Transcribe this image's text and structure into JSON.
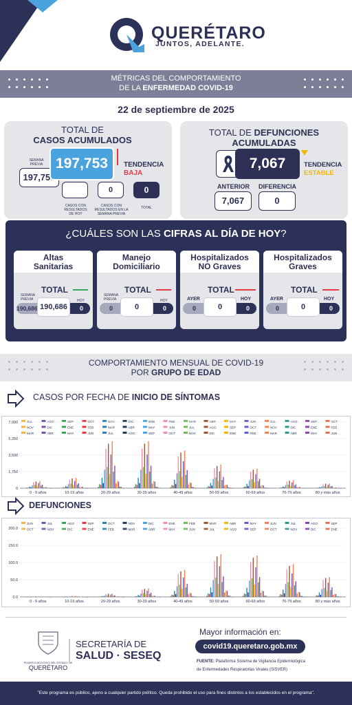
{
  "header": {
    "brand": "QUERÉTARO",
    "slogan": "JUNTOS, ADELANTE."
  },
  "banner": {
    "line1": "MÉTRICAS DEL COMPORTAMIENTO",
    "line2_prefix": "DE LA",
    "line2_bold": "ENFERMEDAD COVID-19"
  },
  "date": "22 de septiembre de 2025",
  "cases": {
    "title1": "TOTAL DE",
    "title2": "CASOS ACUMULADOS",
    "prev_week_label": "SEMANA PREVIA",
    "prev_week": "197,753",
    "current": "197,753",
    "trend_label": "TENDENCIA",
    "trend": "BAJA",
    "by_date_value": "",
    "prev_week_results": "0",
    "total": "0",
    "lbl_results_today": "CASOS CON RESULTADOS DE HOY",
    "lbl_results_prev": "CASOS CON RESULTADOS EN LA SEMANA PREVIA",
    "lbl_total": "TOTAL"
  },
  "deaths": {
    "title1": "TOTAL DE",
    "title1b": "DEFUNCIONES",
    "title2": "ACUMULADAS",
    "current": "7,067",
    "trend_label": "TENDENCIA",
    "trend": "ESTABLE",
    "prev_label": "ANTERIOR",
    "prev": "7,067",
    "diff_label": "DIFERENCIA",
    "diff": "0"
  },
  "today": {
    "heading_prefix": "¿CUÁLES SON LAS",
    "heading_bold": "CIFRAS AL DÍA DE HOY",
    "heading_suffix": "?",
    "total_label": "TOTAL",
    "cards": [
      {
        "line1": "Altas",
        "line2": "Sanitarias",
        "left_label": "SEMANA PREVIA",
        "left": "190,686",
        "mid": "190,686",
        "right_label": "HOY",
        "right": "0"
      },
      {
        "line1": "Manejo",
        "line2": "Domiciliario",
        "left_label": "SEMANA PREVIA",
        "left": "0",
        "mid": "0",
        "right_label": "HOY",
        "right": "0"
      },
      {
        "line1": "Hospitalizados",
        "line2": "NO Graves",
        "left_label": "AYER",
        "left": "0",
        "mid": "0",
        "right_label": "HOY",
        "right": "0"
      },
      {
        "line1": "Hospitalizados",
        "line2": "Graves",
        "left_label": "AYER",
        "left": "0",
        "mid": "0",
        "right_label": "HOY",
        "right": "0"
      }
    ]
  },
  "monthly": {
    "line1": "COMPORTAMIENTO MENSUAL DE COVID-19",
    "line2_prefix": "POR",
    "line2_bold": "GRUPO DE EDAD",
    "cases_title_prefix": "CASOS POR FECHA DE",
    "cases_title_bold": "INICIO DE SÍNTOMAS",
    "deaths_title": "DEFUNCIONES"
  },
  "chart_data": [
    {
      "type": "bar",
      "title": "CASOS POR FECHA DE INICIO DE SÍNTOMAS",
      "categories": [
        "0 - 9 años",
        "10-19 años",
        "20-29 años",
        "30-39 años",
        "40-49 años",
        "50-59 años",
        "60-69 años",
        "70-79 años",
        "80 y más años"
      ],
      "yticks": [
        "0",
        "1,750",
        "3,500",
        "5,250",
        "7,000"
      ],
      "ylim": [
        0,
        7000
      ],
      "legend_months": [
        "JUL",
        "AGO",
        "SEP",
        "OCT",
        "NOV",
        "DIC",
        "ENE",
        "FEB",
        "MAR",
        "ABR",
        "MAY",
        "JUN",
        "JUL",
        "AGO",
        "SEP",
        "OCT",
        "NOV",
        "DIC",
        "ENE",
        "FEB",
        "MAR",
        "ABR",
        "MAY",
        "JUN",
        "JUL",
        "AGO",
        "SEP",
        "OCT",
        "NOV",
        "DIC",
        "ENE",
        "FEB",
        "MAR",
        "ABR",
        "MAY",
        "JUN",
        "JUL",
        "AGO",
        "SEP",
        "OCT",
        "NOV",
        "DIC",
        "ENE",
        "FEB",
        "MAR",
        "ABR",
        "MAY",
        "JUN"
      ],
      "peak_values": [
        900,
        1300,
        6000,
        6000,
        4800,
        3000,
        2500,
        1000,
        600
      ]
    },
    {
      "type": "bar",
      "title": "DEFUNCIONES",
      "categories": [
        "0 - 9 años",
        "10-19 años",
        "20-29 años",
        "30-39 años",
        "40-49 años",
        "50-59 años",
        "60-69 años",
        "70-79 años",
        "80 y más años"
      ],
      "yticks": [
        "0.0",
        "50.0",
        "100.0",
        "150.0",
        "200.0"
      ],
      "ylim": [
        0,
        200
      ],
      "legend_months": [
        "JUN",
        "JUL",
        "AGO",
        "SEP",
        "OCT",
        "NOV",
        "DIC",
        "ENE",
        "FEB",
        "MAR",
        "ABR",
        "MAY",
        "JUN",
        "JUL",
        "AGO",
        "SEP",
        "OCT",
        "NOV",
        "DIC",
        "ENE",
        "FEB",
        "MAR",
        "ABR",
        "MAY",
        "JUN",
        "JUL",
        "AGO",
        "SEP",
        "OCT",
        "NOV",
        "DIC",
        "ENE"
      ],
      "peak_values": [
        2,
        3,
        12,
        30,
        95,
        150,
        145,
        115,
        70
      ]
    }
  ],
  "footer_info": {
    "secretaria1": "SECRETARÍA DE",
    "secretaria2": "SALUD · SESEQ",
    "gov_small": "PODER EJECUTIVO DEL ESTADO DE",
    "gov_big": "QUERÉTARO",
    "more_info": "Mayor información en:",
    "url": "covid19.queretaro.gob.mx",
    "source_label": "FUENTE:",
    "source1": "Plataforma Sistema de Vigilancia Epidemiológica",
    "source2": "de Enfermedades Respiratorias Virales (SISVER)",
    "disclaimer": "\"Este programa es público, ajeno a cualquier partido político. Queda prohibido el uso para fines distintos a los establecidos en el programa\"."
  },
  "colors": {
    "navy": "#2c3158",
    "blue": "#4aa3dc",
    "red": "#e63946",
    "yellow": "#f2b705",
    "green": "#3aa55a"
  }
}
